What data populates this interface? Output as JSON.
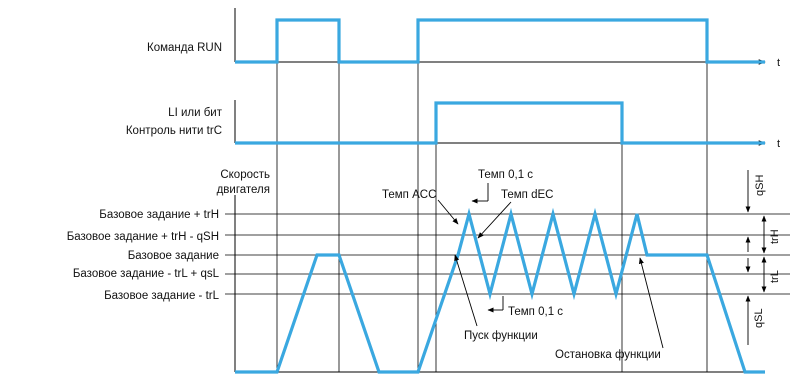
{
  "signals": {
    "run_label": "Команда RUN",
    "li_label_line1": "LI или бит",
    "li_label_line2": "Контроль нити trC",
    "t_axis_label": "t",
    "speed_label_line1": "Скорость",
    "speed_label_line2": "двигателя"
  },
  "levels": {
    "ref_plus_trh": "Базовое задание + trH",
    "ref_plus_trh_minus_qsh": "Базовое задание + trH - qSH",
    "ref": "Базовое задание",
    "ref_minus_trl_plus_qsl": "Базовое задание - trL + qsL",
    "ref_minus_trl": "Базовое задание - trL"
  },
  "annotations": {
    "temp_01_top": "Темп 0,1 с",
    "temp_acc": "Темп ACC",
    "temp_dec": "Темп dEC",
    "temp_01_bottom": "Темп 0,1 с",
    "start_function": "Пуск функции",
    "stop_function": "Остановка функции"
  },
  "dimensions": {
    "qsh": "qSH",
    "trh": "trH",
    "trl": "trL",
    "qsl": "qSL"
  }
}
